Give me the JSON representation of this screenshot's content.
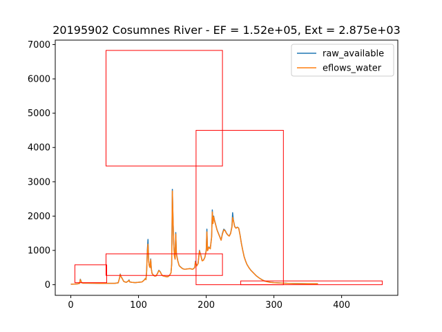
{
  "chart_data": {
    "type": "line",
    "title": "20195902 Cosumnes River - EF = 1.52e+05, Ext = 2.875e+03",
    "xlabel": "",
    "ylabel": "",
    "xlim": [
      -23,
      483
    ],
    "ylim": [
      -310,
      7130
    ],
    "x_ticks": [
      0,
      100,
      200,
      300,
      400
    ],
    "y_ticks": [
      0,
      1000,
      2000,
      3000,
      4000,
      5000,
      6000,
      7000
    ],
    "grid": false,
    "legend_position": "top-right",
    "series": [
      {
        "name": "raw_available",
        "color": "#1f77b4",
        "points": [
          [
            0,
            15
          ],
          [
            5,
            18
          ],
          [
            10,
            25
          ],
          [
            13,
            40
          ],
          [
            14,
            160
          ],
          [
            15,
            110
          ],
          [
            16,
            60
          ],
          [
            18,
            45
          ],
          [
            25,
            45
          ],
          [
            35,
            42
          ],
          [
            45,
            38
          ],
          [
            55,
            40
          ],
          [
            65,
            40
          ],
          [
            70,
            55
          ],
          [
            72,
            200
          ],
          [
            73,
            310
          ],
          [
            74,
            240
          ],
          [
            76,
            180
          ],
          [
            78,
            100
          ],
          [
            80,
            80
          ],
          [
            82,
            70
          ],
          [
            85,
            110
          ],
          [
            86,
            140
          ],
          [
            87,
            80
          ],
          [
            90,
            70
          ],
          [
            95,
            60
          ],
          [
            100,
            70
          ],
          [
            105,
            80
          ],
          [
            108,
            130
          ],
          [
            110,
            180
          ],
          [
            111,
            150
          ],
          [
            112,
            400
          ],
          [
            113,
            1000
          ],
          [
            114,
            1320
          ],
          [
            115,
            700
          ],
          [
            116,
            550
          ],
          [
            117,
            500
          ],
          [
            118,
            750
          ],
          [
            119,
            460
          ],
          [
            120,
            330
          ],
          [
            122,
            280
          ],
          [
            124,
            250
          ],
          [
            126,
            260
          ],
          [
            128,
            330
          ],
          [
            130,
            420
          ],
          [
            132,
            380
          ],
          [
            134,
            300
          ],
          [
            136,
            260
          ],
          [
            138,
            250
          ],
          [
            140,
            240
          ],
          [
            142,
            230
          ],
          [
            144,
            240
          ],
          [
            146,
            280
          ],
          [
            148,
            350
          ],
          [
            149,
            600
          ],
          [
            150,
            2780
          ],
          [
            151,
            1900
          ],
          [
            152,
            1200
          ],
          [
            153,
            850
          ],
          [
            154,
            750
          ],
          [
            155,
            1520
          ],
          [
            156,
            900
          ],
          [
            158,
            700
          ],
          [
            160,
            560
          ],
          [
            162,
            520
          ],
          [
            165,
            470
          ],
          [
            168,
            450
          ],
          [
            172,
            460
          ],
          [
            176,
            470
          ],
          [
            180,
            450
          ],
          [
            183,
            500
          ],
          [
            184,
            680
          ],
          [
            186,
            550
          ],
          [
            188,
            620
          ],
          [
            190,
            1000
          ],
          [
            192,
            860
          ],
          [
            194,
            700
          ],
          [
            196,
            720
          ],
          [
            198,
            800
          ],
          [
            200,
            1000
          ],
          [
            201,
            1620
          ],
          [
            202,
            1000
          ],
          [
            204,
            1100
          ],
          [
            206,
            1050
          ],
          [
            208,
            1400
          ],
          [
            209,
            2180
          ],
          [
            210,
            1800
          ],
          [
            211,
            2000
          ],
          [
            212,
            1900
          ],
          [
            214,
            1750
          ],
          [
            216,
            1600
          ],
          [
            218,
            1500
          ],
          [
            220,
            1400
          ],
          [
            222,
            1300
          ],
          [
            224,
            1500
          ],
          [
            226,
            1620
          ],
          [
            228,
            1580
          ],
          [
            230,
            1500
          ],
          [
            232,
            1450
          ],
          [
            234,
            1420
          ],
          [
            236,
            1500
          ],
          [
            238,
            1700
          ],
          [
            239,
            2100
          ],
          [
            240,
            1900
          ],
          [
            242,
            1700
          ],
          [
            244,
            1650
          ],
          [
            246,
            1680
          ],
          [
            248,
            1650
          ],
          [
            250,
            1450
          ],
          [
            252,
            1200
          ],
          [
            254,
            1000
          ],
          [
            256,
            820
          ],
          [
            258,
            700
          ],
          [
            260,
            600
          ],
          [
            263,
            500
          ],
          [
            266,
            420
          ],
          [
            270,
            340
          ],
          [
            274,
            260
          ],
          [
            278,
            200
          ],
          [
            282,
            150
          ],
          [
            286,
            110
          ],
          [
            290,
            90
          ],
          [
            295,
            70
          ],
          [
            300,
            60
          ],
          [
            310,
            50
          ],
          [
            320,
            40
          ],
          [
            330,
            35
          ],
          [
            340,
            32
          ],
          [
            350,
            30
          ],
          [
            360,
            30
          ],
          [
            365,
            30
          ]
        ]
      },
      {
        "name": "eflows_water",
        "color": "#ff7f0e",
        "points": [
          [
            0,
            15
          ],
          [
            5,
            18
          ],
          [
            10,
            25
          ],
          [
            13,
            40
          ],
          [
            14,
            150
          ],
          [
            15,
            105
          ],
          [
            16,
            58
          ],
          [
            18,
            45
          ],
          [
            25,
            45
          ],
          [
            35,
            42
          ],
          [
            45,
            38
          ],
          [
            55,
            40
          ],
          [
            65,
            40
          ],
          [
            70,
            55
          ],
          [
            72,
            195
          ],
          [
            73,
            300
          ],
          [
            74,
            235
          ],
          [
            76,
            175
          ],
          [
            78,
            100
          ],
          [
            80,
            80
          ],
          [
            82,
            70
          ],
          [
            85,
            105
          ],
          [
            86,
            130
          ],
          [
            87,
            80
          ],
          [
            90,
            70
          ],
          [
            95,
            60
          ],
          [
            100,
            70
          ],
          [
            105,
            80
          ],
          [
            108,
            125
          ],
          [
            110,
            175
          ],
          [
            111,
            145
          ],
          [
            112,
            380
          ],
          [
            113,
            950
          ],
          [
            114,
            1180
          ],
          [
            115,
            680
          ],
          [
            116,
            540
          ],
          [
            117,
            500
          ],
          [
            118,
            730
          ],
          [
            119,
            450
          ],
          [
            120,
            325
          ],
          [
            122,
            275
          ],
          [
            124,
            250
          ],
          [
            126,
            258
          ],
          [
            128,
            325
          ],
          [
            130,
            410
          ],
          [
            132,
            375
          ],
          [
            134,
            298
          ],
          [
            136,
            258
          ],
          [
            138,
            250
          ],
          [
            140,
            240
          ],
          [
            142,
            230
          ],
          [
            144,
            240
          ],
          [
            146,
            278
          ],
          [
            148,
            345
          ],
          [
            149,
            590
          ],
          [
            150,
            2730
          ],
          [
            151,
            1880
          ],
          [
            152,
            1190
          ],
          [
            153,
            840
          ],
          [
            154,
            745
          ],
          [
            155,
            1480
          ],
          [
            156,
            890
          ],
          [
            158,
            695
          ],
          [
            160,
            555
          ],
          [
            162,
            515
          ],
          [
            165,
            468
          ],
          [
            168,
            450
          ],
          [
            172,
            458
          ],
          [
            176,
            468
          ],
          [
            180,
            448
          ],
          [
            183,
            495
          ],
          [
            184,
            660
          ],
          [
            186,
            548
          ],
          [
            188,
            615
          ],
          [
            190,
            980
          ],
          [
            192,
            850
          ],
          [
            194,
            695
          ],
          [
            196,
            715
          ],
          [
            198,
            795
          ],
          [
            200,
            980
          ],
          [
            201,
            1540
          ],
          [
            202,
            990
          ],
          [
            204,
            1090
          ],
          [
            206,
            1045
          ],
          [
            208,
            1380
          ],
          [
            209,
            2120
          ],
          [
            210,
            1780
          ],
          [
            211,
            1980
          ],
          [
            212,
            1880
          ],
          [
            214,
            1740
          ],
          [
            216,
            1590
          ],
          [
            218,
            1490
          ],
          [
            220,
            1395
          ],
          [
            222,
            1295
          ],
          [
            224,
            1480
          ],
          [
            226,
            1600
          ],
          [
            228,
            1570
          ],
          [
            230,
            1495
          ],
          [
            232,
            1445
          ],
          [
            234,
            1415
          ],
          [
            236,
            1490
          ],
          [
            238,
            1680
          ],
          [
            239,
            1960
          ],
          [
            240,
            1880
          ],
          [
            242,
            1690
          ],
          [
            244,
            1645
          ],
          [
            246,
            1675
          ],
          [
            248,
            1645
          ],
          [
            250,
            1445
          ],
          [
            252,
            1195
          ],
          [
            254,
            995
          ],
          [
            256,
            815
          ],
          [
            258,
            698
          ],
          [
            260,
            598
          ],
          [
            263,
            498
          ],
          [
            266,
            418
          ],
          [
            270,
            338
          ],
          [
            274,
            258
          ],
          [
            278,
            198
          ],
          [
            282,
            148
          ],
          [
            286,
            108
          ],
          [
            290,
            88
          ],
          [
            295,
            68
          ],
          [
            300,
            58
          ],
          [
            310,
            48
          ],
          [
            320,
            38
          ],
          [
            330,
            33
          ],
          [
            340,
            30
          ],
          [
            350,
            28
          ],
          [
            360,
            28
          ],
          [
            365,
            28
          ]
        ]
      }
    ],
    "annotation_boxes": [
      {
        "x0": 6,
        "x1": 53,
        "y0": 60,
        "y1": 580,
        "color": "#ff0000"
      },
      {
        "x0": 52,
        "x1": 224,
        "y0": 3460,
        "y1": 6830,
        "color": "#ff0000"
      },
      {
        "x0": 52,
        "x1": 224,
        "y0": 270,
        "y1": 900,
        "color": "#ff0000"
      },
      {
        "x0": 185,
        "x1": 314,
        "y0": 0,
        "y1": 4500,
        "color": "#ff0000"
      },
      {
        "x0": 251,
        "x1": 460,
        "y0": 0,
        "y1": 110,
        "color": "#ff0000"
      }
    ]
  }
}
